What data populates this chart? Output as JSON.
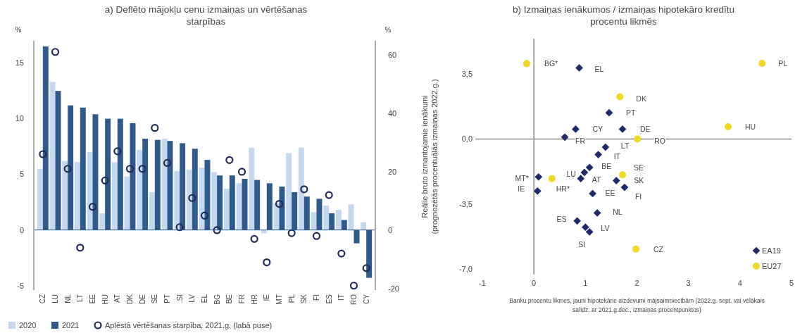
{
  "chart_data": [
    {
      "type": "bar",
      "title": "a) Deflēto mājokļu cenu izmaiņas un vērtēšanas starpības",
      "ylabel": "%",
      "y2label": "%",
      "categories": [
        "CZ",
        "LU",
        "NL",
        "LT",
        "EE",
        "HU",
        "AT",
        "DK",
        "DE",
        "SE",
        "PT",
        "SI",
        "LV",
        "EL",
        "BG",
        "BE",
        "FR",
        "HR",
        "IE",
        "MT",
        "PL",
        "SK",
        "FI",
        "ES",
        "IT",
        "RO",
        "CY"
      ],
      "series": [
        {
          "name": "2020",
          "type": "bar",
          "color": "#c6d8ef",
          "values": [
            5.5,
            13.3,
            6.2,
            6.1,
            7.0,
            1.5,
            6.1,
            4.8,
            7.2,
            3.4,
            8.2,
            5.3,
            5.4,
            5.6,
            5.2,
            3.7,
            4.2,
            7.4,
            -0.3,
            2.4,
            6.9,
            7.4,
            1.6,
            2.2,
            1.8,
            2.3,
            0.7
          ]
        },
        {
          "name": "2021",
          "type": "bar",
          "color": "#2e5a8c",
          "values": [
            16.5,
            12.5,
            11.2,
            11.0,
            10.4,
            10.0,
            10.0,
            9.6,
            8.2,
            8.1,
            8.0,
            7.8,
            7.3,
            6.3,
            4.9,
            4.9,
            4.6,
            4.5,
            4.2,
            3.9,
            3.4,
            3.0,
            2.8,
            1.5,
            0.9,
            -1.2,
            -4.3
          ]
        },
        {
          "name": "Aplēstā vērtēšanas starpība, 2021.g. (labā puse)",
          "type": "scatter",
          "axis": "y2",
          "marker": "circle",
          "color": "#1f2a5a",
          "x": [
            "CZ",
            "LU",
            "NL",
            "LT",
            "EE",
            "HU",
            "AT",
            "DK",
            "DE",
            "SE",
            "PT",
            "SI",
            "LV",
            "EL",
            "BG",
            "BE",
            "FR",
            "HR",
            "IE",
            "MT",
            "PL",
            "SK",
            "FI",
            "ES",
            "IT",
            "RO",
            "CY"
          ],
          "values": [
            26,
            61,
            21,
            -6,
            8,
            17,
            27,
            21,
            21,
            35,
            23,
            1,
            11,
            5,
            0,
            24,
            20,
            -3,
            -11,
            9,
            -1,
            14,
            -2,
            12,
            -8,
            -19,
            -13
          ]
        }
      ],
      "ylim": [
        -5.4,
        17
      ],
      "yticks": [
        -5,
        0,
        5,
        10,
        15
      ],
      "y2lim": [
        -20.5,
        64.8
      ],
      "y2ticks": [
        -20,
        0,
        20,
        40,
        60
      ],
      "grid": false,
      "legend": "bottom",
      "ref_lines": [
        {
          "axis": "y",
          "value": 0,
          "color": "#2e5a8c"
        }
      ]
    },
    {
      "type": "scatter",
      "title": "b) Izmaiņas ienākumos / izmaiņas hipotekāro kredītu procentu likmēs",
      "xlabel": "Banku procentu likmes, jauni hipotekārie aizdevumi mājsaimniecībām (2022.g. sept. vai vēlākais salīdz. ar 2021.g.dec., izmaiņas procentpunktos)",
      "ylabel": "Reālie bruto izmantojamie ienākumi (prognozētās procentuālās izmaiņas 2022.g.)",
      "series": [
        {
          "name": "EA19",
          "type": "scatter",
          "marker": "diamond",
          "color": "#1f2a6b",
          "x": [
            0.88,
            1.46,
            0.81,
            1.72,
            0.6,
            1.39,
            1.25,
            1.08,
            0.98,
            0.91,
            0.09,
            0.07,
            1.14,
            1.6,
            1.76,
            1.23,
            0.84,
            1.0,
            1.08
          ],
          "values": [
            3.83,
            1.41,
            0.53,
            0.53,
            0.1,
            -0.44,
            -0.84,
            -1.53,
            -1.8,
            -2.13,
            -2.04,
            -2.8,
            -2.94,
            -2.24,
            -2.6,
            -3.98,
            -4.41,
            -4.75,
            -5.0
          ]
        },
        {
          "name": "EU27",
          "type": "scatter",
          "marker": "circle",
          "color": "#f0d824",
          "x": [
            -0.14,
            4.43,
            1.67,
            3.77,
            2.01,
            1.72,
            0.35,
            1.98
          ],
          "values": [
            4.06,
            4.07,
            2.27,
            0.66,
            0.0,
            -1.93,
            -2.13,
            -5.93
          ]
        }
      ],
      "annotations": [
        {
          "text": "BG*",
          "x": -0.14,
          "y": 4.06
        },
        {
          "text": "EL",
          "x": 0.88,
          "y": 3.83
        },
        {
          "text": "PL",
          "x": 4.43,
          "y": 4.07
        },
        {
          "text": "DK",
          "x": 1.67,
          "y": 2.27
        },
        {
          "text": "PT",
          "x": 1.46,
          "y": 1.41
        },
        {
          "text": "HU",
          "x": 3.77,
          "y": 0.66
        },
        {
          "text": "CY",
          "x": 0.81,
          "y": 0.53
        },
        {
          "text": "DE",
          "x": 1.72,
          "y": 0.53
        },
        {
          "text": "FR",
          "x": 0.6,
          "y": 0.1
        },
        {
          "text": "RO",
          "x": 2.01,
          "y": 0.0
        },
        {
          "text": "LT",
          "x": 1.39,
          "y": -0.44
        },
        {
          "text": "IT",
          "x": 1.25,
          "y": -0.84
        },
        {
          "text": "LU",
          "x": 0.98,
          "y": -1.8
        },
        {
          "text": "BE",
          "x": 1.08,
          "y": -1.53
        },
        {
          "text": "SE",
          "x": 1.72,
          "y": -1.93
        },
        {
          "text": "AT",
          "x": 0.91,
          "y": -2.13
        },
        {
          "text": "SK",
          "x": 1.6,
          "y": -2.24
        },
        {
          "text": "MT*",
          "x": 0.09,
          "y": -2.04
        },
        {
          "text": "HR*",
          "x": 0.35,
          "y": -2.13
        },
        {
          "text": "IE",
          "x": 0.07,
          "y": -2.8
        },
        {
          "text": "EE",
          "x": 1.14,
          "y": -2.94
        },
        {
          "text": "FI",
          "x": 1.76,
          "y": -2.6
        },
        {
          "text": "NL",
          "x": 1.23,
          "y": -3.98
        },
        {
          "text": "ES",
          "x": 0.84,
          "y": -4.41
        },
        {
          "text": "LV",
          "x": 1.0,
          "y": -4.75
        },
        {
          "text": "SI",
          "x": 1.08,
          "y": -5.0
        },
        {
          "text": "CZ",
          "x": 1.98,
          "y": -5.93
        }
      ],
      "ref_lines": [
        {
          "axis": "x",
          "value": 0,
          "color": "#888888"
        },
        {
          "axis": "y",
          "value": 0,
          "color": "#888888"
        }
      ],
      "xlim": [
        -1,
        5
      ],
      "xticks": [
        -1,
        0,
        1,
        2,
        3,
        4,
        5
      ],
      "ylim": [
        -7.3,
        5.4
      ],
      "yticks": [
        {
          "value": 3.5,
          "label": "3,5"
        },
        {
          "value": 0,
          "label": "0,0"
        },
        {
          "value": -3.5,
          "label": "-3,5"
        },
        {
          "value": -7,
          "label": "-7,0"
        }
      ],
      "grid": false,
      "legend": "bottom right"
    }
  ]
}
